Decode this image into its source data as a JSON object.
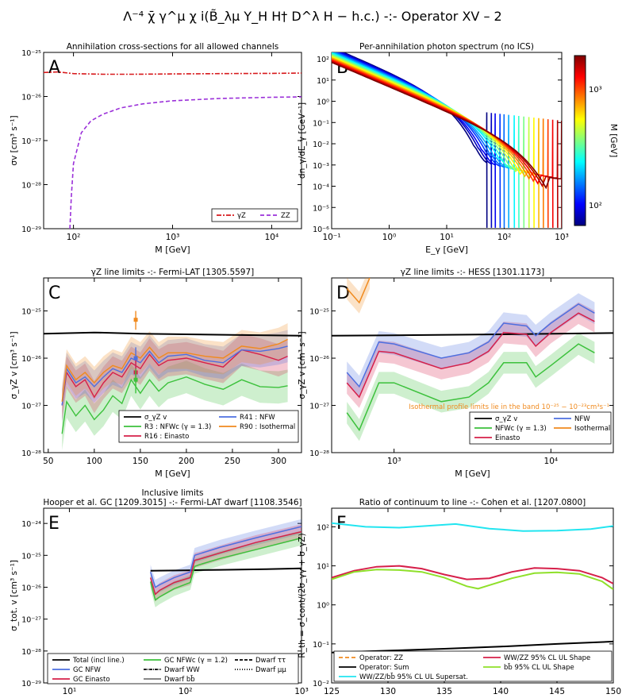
{
  "page_title": "Λ⁻⁴ χ̄ γ^μ χ i(B̃_λμ Y_H H† D^λ H − h.c.) -:- Operator XV – 2",
  "colors": {
    "gz": "#d7191c",
    "zz": "#9b30d9",
    "black": "#000000",
    "blue": "#4d6fe0",
    "red": "#d6204a",
    "green": "#3cc13c",
    "orange": "#f08a1e",
    "cyan": "#22e5f0",
    "lime": "#8fe02a",
    "dashOrange": "#f08a1e"
  },
  "panels": {
    "A": {
      "letter": "A",
      "title": "Annihilation cross-sections for all allowed channels",
      "xlabel": "M [GeV]",
      "ylabel": "σv [cm³ s⁻¹]",
      "xticks": [
        "10²",
        "10³",
        "10⁴"
      ],
      "yticks": [
        "10⁻²⁵",
        "10⁻²⁶",
        "10⁻²⁷",
        "10⁻²⁸",
        "10⁻²⁹"
      ],
      "legend": [
        "γZ",
        "ZZ"
      ]
    },
    "B": {
      "letter": "B",
      "title": "Per-annihilation photon spectrum (no ICS)",
      "xlabel": "E_γ [GeV]",
      "ylabel": "dn_γ/dE_γ [GeV⁻¹]",
      "xticks": [
        "10⁻¹",
        "10⁰",
        "10¹",
        "10²",
        "10³"
      ],
      "yticks": [
        "10²",
        "10¹",
        "10⁰",
        "10⁻¹",
        "10⁻²",
        "10⁻³",
        "10⁻⁴",
        "10⁻⁵",
        "10⁻⁶"
      ],
      "cbar_label": "M [GeV]",
      "cbar_ticks": [
        "10³",
        "10²"
      ]
    },
    "C": {
      "letter": "C",
      "title": "γZ line limits -:- Fermi-LAT [1305.5597]",
      "xlabel": "M [GeV]",
      "ylabel": "σ_γZ v [cm³ s⁻¹]",
      "xticks": [
        "50",
        "100",
        "150",
        "200",
        "250",
        "300"
      ],
      "yticks": [
        "10⁻²⁵",
        "10⁻²⁶",
        "10⁻²⁷",
        "10⁻²⁸"
      ],
      "legend": [
        "σ_γZ v",
        "R3 : NFWc (γ = 1.3)",
        "R16 : Einasto",
        "R41 : NFW",
        "R90 : Isothermal"
      ]
    },
    "D": {
      "letter": "D",
      "title": "γZ line limits -:- HESS [1301.1173]",
      "xlabel": "M [GeV]",
      "ylabel": "σ_γZ v [cm³ s⁻¹]",
      "xticks": [
        "10³",
        "10⁴"
      ],
      "yticks": [
        "10⁻²⁵",
        "10⁻²⁶",
        "10⁻²⁷",
        "10⁻²⁸"
      ],
      "note": "Isothermal profile limits lie in the band 10⁻²⁵ − 10⁻²³cm³s⁻¹",
      "legend": [
        "σ_γZ v",
        "NFWc (γ = 1.3)",
        "Einasto",
        "NFW",
        "Isothermal"
      ]
    },
    "E": {
      "letter": "E",
      "title": "Inclusive limits",
      "subtitle": "Hooper et al. GC [1209.3015] -:- Fermi-LAT dwarf [1108.3546]",
      "xlabel": "M [GeV]",
      "ylabel": "σ_tot. v [cm³ s⁻¹]",
      "xticks": [
        "10¹",
        "10²",
        "10³"
      ],
      "yticks": [
        "10⁻²⁴",
        "10⁻²⁵",
        "10⁻²⁶",
        "10⁻²⁷",
        "10⁻²⁸",
        "10⁻²⁹"
      ],
      "legend": [
        "Total (incl line.)",
        "GC NFW",
        "GC Einasto",
        "GC NFWc (γ = 1.2)",
        "Dwarf WW",
        "Dwarf bb̄",
        "Dwarf ττ",
        "Dwarf μμ"
      ]
    },
    "F": {
      "letter": "F",
      "title": "Ratio of continuum to line -:- Cohen et al. [1207.0800]",
      "xlabel": "M [GeV]",
      "ylabel": "R_th = σ_cont/(2σ_γγ + σ_γZ)",
      "xticks": [
        "125",
        "130",
        "135",
        "140",
        "145",
        "150"
      ],
      "yticks": [
        "10²",
        "10¹",
        "10⁰",
        "10⁻¹",
        "10⁻²"
      ],
      "legend": [
        "Operator: ZZ",
        "Operator: Sum",
        "WW/ZZ/bb̄ 95% CL UL Supersat.",
        "WW/ZZ 95% CL UL Shape",
        "bb̄ 95% CL UL Shape"
      ]
    }
  },
  "chart_data": [
    {
      "panel": "A",
      "type": "line",
      "xscale": "log",
      "yscale": "log",
      "xlim": [
        50,
        20000
      ],
      "ylim": [
        1e-29,
        1e-25
      ],
      "series": [
        {
          "name": "γZ",
          "x": [
            50,
            70,
            100,
            200,
            400,
            1000,
            3000,
            10000,
            20000
          ],
          "y": [
            3.5e-26,
            3.6e-26,
            3.3e-26,
            3.2e-26,
            3.2e-26,
            3.25e-26,
            3.3e-26,
            3.35e-26,
            3.4e-26
          ]
        },
        {
          "name": "ZZ",
          "x": [
            92,
            95,
            100,
            120,
            150,
            200,
            300,
            500,
            1000,
            3000,
            10000,
            20000
          ],
          "y": [
            1e-29,
            5e-29,
            3e-28,
            1.5e-27,
            2.8e-27,
            4e-27,
            5.5e-27,
            6.8e-27,
            8e-27,
            9e-27,
            9.6e-27,
            9.8e-27
          ]
        }
      ]
    },
    {
      "panel": "B",
      "type": "line",
      "xscale": "log",
      "yscale": "log",
      "xlim": [
        0.1,
        1000
      ],
      "ylim": [
        1e-06,
        200
      ],
      "masses_GeV": [
        50,
        60,
        70,
        85,
        100,
        120,
        150,
        180,
        220,
        270,
        330,
        400,
        480,
        580,
        700,
        850,
        1000
      ]
    },
    {
      "panel": "C",
      "type": "line",
      "xscale": "linear",
      "yscale": "log",
      "xlim": [
        45,
        325
      ],
      "ylim": [
        1e-28,
        5e-25
      ],
      "series": [
        {
          "name": "σ_γZ v",
          "x": [
            45,
            100,
            150,
            200,
            250,
            325
          ],
          "y": [
            3.3e-26,
            3.5e-26,
            3.3e-26,
            3.2e-26,
            3.1e-26,
            3e-26
          ]
        },
        {
          "name": "R3 : NFWc (γ = 1.3)",
          "x": [
            65,
            70,
            80,
            90,
            100,
            110,
            120,
            130,
            140,
            150,
            160,
            170,
            180,
            200,
            220,
            240,
            260,
            280,
            300,
            310
          ],
          "y": [
            2.5e-28,
            1.2e-27,
            6e-28,
            1e-27,
            5e-28,
            8e-28,
            1.6e-27,
            1.1e-27,
            3.5e-27,
            1.8e-27,
            3.5e-27,
            2e-27,
            3e-27,
            4e-27,
            2.8e-27,
            2.2e-27,
            3.5e-27,
            2.5e-27,
            2.4e-27,
            2.6e-27
          ]
        },
        {
          "name": "R16 : Einasto",
          "x": [
            65,
            70,
            80,
            90,
            100,
            110,
            120,
            130,
            140,
            150,
            160,
            170,
            180,
            200,
            220,
            240,
            260,
            280,
            300,
            310
          ],
          "y": [
            1e-27,
            5e-27,
            2.5e-27,
            3.5e-27,
            1.5e-27,
            3e-27,
            5e-27,
            4e-27,
            8e-27,
            6e-27,
            1.2e-26,
            7e-27,
            9e-27,
            1e-26,
            8e-27,
            6.5e-27,
            1.5e-26,
            1.2e-26,
            9e-27,
            1.1e-26
          ]
        },
        {
          "name": "R41 : NFW",
          "x": [
            65,
            70,
            80,
            90,
            100,
            110,
            120,
            130,
            140,
            150,
            160,
            170,
            180,
            200,
            220,
            240,
            260,
            280,
            300,
            310
          ],
          "y": [
            1e-27,
            6e-27,
            3e-27,
            4e-27,
            2.5e-27,
            4e-27,
            6e-27,
            5e-27,
            1e-26,
            8e-27,
            1.4e-26,
            8e-27,
            1.1e-26,
            1.2e-26,
            9e-27,
            8e-27,
            1.5e-26,
            1.4e-26,
            1.6e-26,
            1.8e-26
          ]
        },
        {
          "name": "R90 : Isothermal",
          "x": [
            65,
            70,
            80,
            90,
            100,
            110,
            120,
            130,
            140,
            150,
            160,
            170,
            180,
            200,
            220,
            240,
            260,
            280,
            300,
            310
          ],
          "y": [
            1.2e-27,
            7e-27,
            3.5e-27,
            5e-27,
            3e-27,
            5e-27,
            7e-27,
            6e-27,
            1.3e-26,
            1e-26,
            1.7e-26,
            1e-26,
            1.3e-26,
            1.3e-26,
            1.1e-26,
            1e-26,
            1.8e-26,
            1.6e-26,
            2e-26,
            2.5e-26
          ]
        }
      ]
    },
    {
      "panel": "D",
      "type": "line",
      "xscale": "log",
      "yscale": "log",
      "xlim": [
        400,
        25000
      ],
      "ylim": [
        1e-28,
        5e-25
      ],
      "series": [
        {
          "name": "σ_γZ v",
          "x": [
            400,
            1000,
            5000,
            25000
          ],
          "y": [
            3e-26,
            3.05e-26,
            3.2e-26,
            3.4e-26
          ]
        },
        {
          "name": "NFWc (γ = 1.3)",
          "x": [
            500,
            600,
            800,
            1000,
            2000,
            3000,
            4000,
            5000,
            7000,
            8000,
            10000,
            15000,
            19000
          ],
          "y": [
            7e-28,
            3e-28,
            3e-27,
            3e-27,
            1.2e-27,
            1.5e-27,
            3e-27,
            8e-27,
            8e-27,
            4e-27,
            7e-27,
            2e-26,
            1.3e-26
          ]
        },
        {
          "name": "Einasto",
          "x": [
            500,
            600,
            800,
            1000,
            2000,
            3000,
            4000,
            5000,
            7000,
            8000,
            10000,
            15000,
            19000
          ],
          "y": [
            3e-27,
            1.5e-27,
            1.4e-26,
            1.3e-26,
            6e-27,
            8e-27,
            1.4e-26,
            3.5e-26,
            3.2e-26,
            1.8e-26,
            3.5e-26,
            9e-26,
            6e-26
          ]
        },
        {
          "name": "NFW",
          "x": [
            500,
            600,
            800,
            1000,
            2000,
            3000,
            4000,
            5000,
            7000,
            8000,
            10000,
            15000,
            19000
          ],
          "y": [
            5e-27,
            2.5e-27,
            2.2e-26,
            2e-26,
            1e-26,
            1.3e-26,
            2.2e-26,
            5.5e-26,
            4.8e-26,
            3e-26,
            5.5e-26,
            1.4e-25,
            9e-26
          ]
        },
        {
          "name": "Isothermal",
          "x": [
            500,
            600,
            700
          ],
          "y": [
            3e-25,
            1.5e-25,
            5e-25
          ]
        }
      ]
    },
    {
      "panel": "E",
      "type": "line",
      "xscale": "log",
      "yscale": "log",
      "xlim": [
        6,
        1000
      ],
      "ylim": [
        1e-29,
        3e-24
      ],
      "series": [
        {
          "name": "Total (incl line.)",
          "x": [
            50,
            100,
            200,
            500,
            1000
          ],
          "y": [
            3.3e-26,
            3.4e-26,
            3.5e-26,
            3.7e-26,
            3.9e-26
          ]
        },
        {
          "name": "GC NFW",
          "x": [
            50,
            55,
            60,
            80,
            110,
            120,
            130,
            200,
            400,
            1000
          ],
          "y": [
            3e-26,
            1e-26,
            1.2e-26,
            2e-26,
            3e-26,
            1e-25,
            1.1e-25,
            1.8e-25,
            3.5e-25,
            8e-25
          ]
        },
        {
          "name": "GC Einasto",
          "x": [
            50,
            55,
            60,
            80,
            110,
            120,
            130,
            200,
            400,
            1000
          ],
          "y": [
            2e-26,
            6e-27,
            8e-27,
            1.4e-26,
            2e-26,
            7e-26,
            7.5e-26,
            1.2e-25,
            2.5e-25,
            5.5e-25
          ]
        },
        {
          "name": "GC NFWc (γ = 1.2)",
          "x": [
            50,
            55,
            60,
            80,
            110,
            120,
            130,
            200,
            400,
            1000
          ],
          "y": [
            1.5e-26,
            4e-27,
            5e-27,
            9e-27,
            1.4e-26,
            4.5e-26,
            5e-26,
            8e-26,
            1.5e-25,
            3.5e-25
          ]
        }
      ]
    },
    {
      "panel": "F",
      "type": "line",
      "xscale": "linear",
      "yscale": "log",
      "xlim": [
        125,
        150
      ],
      "ylim": [
        0.01,
        300
      ],
      "series": [
        {
          "name": "Operator: Sum",
          "x": [
            125,
            130,
            135,
            140,
            145,
            150
          ],
          "y": [
            0.06,
            0.067,
            0.075,
            0.085,
            0.1,
            0.115
          ]
        },
        {
          "name": "WW/ZZ/bb̄ 95% CL UL Supersat.",
          "x": [
            125,
            128,
            131,
            134,
            136,
            139,
            142,
            145,
            148,
            150
          ],
          "y": [
            125,
            100,
            95,
            108,
            118,
            90,
            78,
            80,
            88,
            105
          ]
        },
        {
          "name": "WW/ZZ 95% CL UL Shape",
          "x": [
            125,
            127,
            129,
            131,
            133,
            135,
            137,
            139,
            141,
            143,
            145,
            147,
            149,
            150
          ],
          "y": [
            5,
            7.5,
            9.5,
            10,
            8.5,
            6,
            4.5,
            4.8,
            7,
            8.8,
            8.5,
            7.5,
            5,
            3.5
          ]
        },
        {
          "name": "bb̄ 95% CL UL Shape",
          "x": [
            125,
            127,
            129,
            131,
            133,
            135,
            137,
            138,
            139,
            141,
            143,
            145,
            147,
            149,
            150
          ],
          "y": [
            4.5,
            7,
            8,
            7.8,
            7,
            5,
            3,
            2.6,
            3.2,
            4.8,
            6.5,
            6.8,
            6.2,
            4,
            2.5
          ]
        }
      ]
    }
  ]
}
